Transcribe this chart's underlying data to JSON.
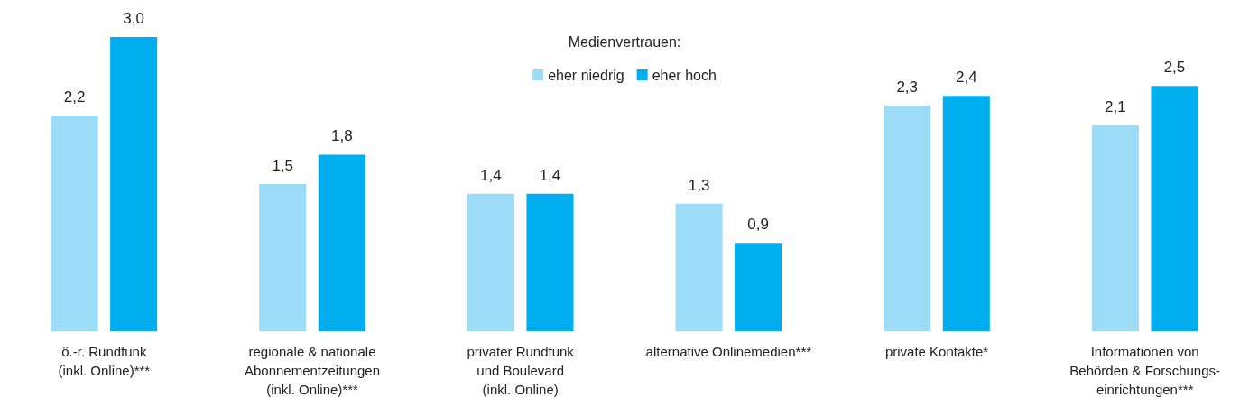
{
  "chart_data": {
    "type": "bar",
    "legend_title": "Medienvertrauen:",
    "legend": "top",
    "categories": [
      "ö.-r. Rundfunk\n(inkl. Online)***",
      "regionale & nationale\nAbonnementzeitungen\n(inkl. Online)***",
      "privater Rundfunk\nund Boulevard\n(inkl. Online)",
      "alternative Onlinemedien***",
      "private Kontakte*",
      "Informationen von\nBehörden & Forschungs-\neinrichtungen***"
    ],
    "series": [
      {
        "name": "eher niedrig",
        "color": "#9ddcf6",
        "values": [
          2.2,
          1.5,
          1.4,
          1.3,
          2.3,
          2.1
        ],
        "value_labels": [
          "2,2",
          "1,5",
          "1,4",
          "1,3",
          "2,3",
          "2,1"
        ]
      },
      {
        "name": "eher hoch",
        "color": "#00aeef",
        "values": [
          3.0,
          1.8,
          1.4,
          0.9,
          2.4,
          2.5
        ],
        "value_labels": [
          "3,0",
          "1,8",
          "1,4",
          "0,9",
          "2,4",
          "2,5"
        ]
      }
    ]
  }
}
